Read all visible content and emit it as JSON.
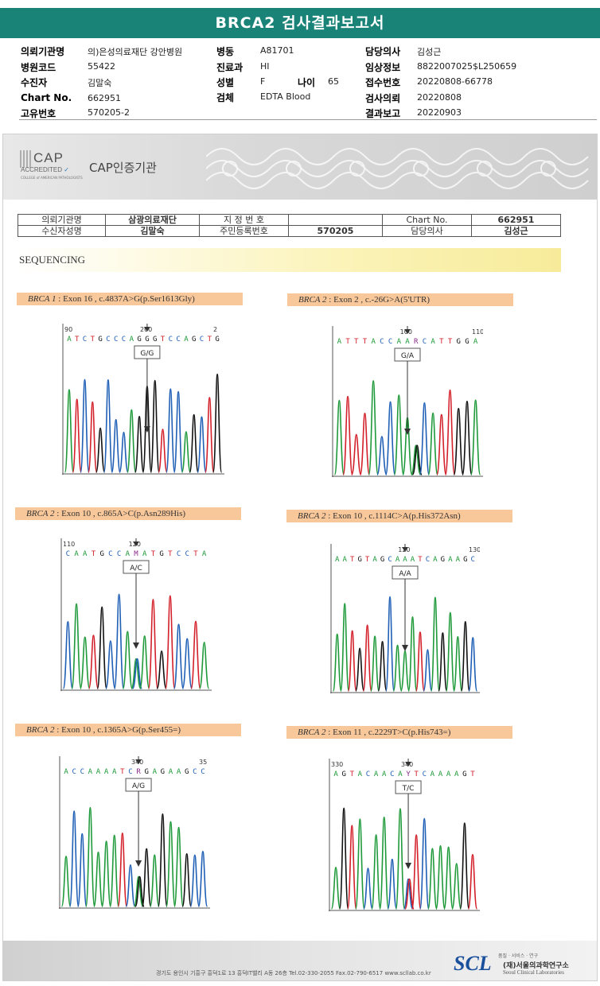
{
  "title": "BRCA2 검사결과보고서",
  "header": {
    "col1": [
      {
        "label": "의뢰기관명",
        "value": "의)은성의료재단 강안병원"
      },
      {
        "label": "병원코드",
        "value": "55422"
      },
      {
        "label": "수진자",
        "value": "김말숙"
      },
      {
        "label": "Chart No.",
        "value": "662951"
      },
      {
        "label": "고유번호",
        "value": "570205-2"
      }
    ],
    "col2": [
      {
        "label": "병동",
        "value": "A81701"
      },
      {
        "label": "진료과",
        "value": "HI"
      },
      {
        "label": "성별",
        "value": "F"
      },
      {
        "label": "검체",
        "value": "EDTA Blood"
      }
    ],
    "age": {
      "label": "나이",
      "value": "65"
    },
    "col3": [
      {
        "label": "담당의사",
        "value": "김성근"
      },
      {
        "label": "임상정보",
        "value": "8822007025$L250659"
      },
      {
        "label": "접수번호",
        "value": "20220808-66778"
      },
      {
        "label": "검사의뢰",
        "value": "20220808"
      },
      {
        "label": "결과보고",
        "value": "20220903"
      }
    ]
  },
  "cap": {
    "logo_big": "CAP",
    "logo_accredited": "ACCREDITED",
    "logo_small": "COLLEGE of AMERICAN PATHOLOGISTS",
    "text": "CAP인증기관"
  },
  "info_table": {
    "r1": [
      "의뢰기관명",
      "삼광의료재단",
      "지 정 번 호",
      "",
      "Chart No.",
      "662951"
    ],
    "r2": [
      "수신자성명",
      "김말숙",
      "주민등록번호",
      "570205",
      "담당의사",
      "김성근"
    ]
  },
  "sequencing_label": "SEQUENCING",
  "panels": [
    {
      "gene": "BRCA 1",
      "desc": " : Exon 16 , c.4837A>G(p.Ser1613Gly)",
      "pos_left": "90",
      "pos_mid": "200",
      "pos_right": "2",
      "bases": "ATCTGCCCAGGGTCCAGCTG",
      "genotype": "G/G"
    },
    {
      "gene": "BRCA 2",
      "desc": " : Exon 2 , c.-26G>A(5'UTR)",
      "pos_left": "",
      "pos_mid": "100",
      "pos_right": "110",
      "bases": "ATTTACCAARCATTGGA",
      "genotype": "G/A"
    },
    {
      "gene": "BRCA 2",
      "desc": " : Exon 10 , c.865A>C(p.Asn289His)",
      "pos_left": "110",
      "pos_mid": "120",
      "pos_right": "",
      "bases": "CAATGCCAMATGTCCTA",
      "genotype": "A/C"
    },
    {
      "gene": "BRCA 2",
      "desc": " : Exon 10 , c.1114C>A(p.His372Asn)",
      "pos_left": "",
      "pos_mid": "120",
      "pos_right": "130",
      "bases": "AATGTAGCAAATCAGAAGC",
      "genotype": "A/A"
    },
    {
      "gene": "BRCA 2",
      "desc": " : Exon 10 , c.1365A>G(p.Ser455=)",
      "pos_left": "",
      "pos_mid": "340",
      "pos_right": "35",
      "bases": "ACCAAAATCRGAGAAGCC",
      "genotype": "A/G"
    },
    {
      "gene": "BRCA 2",
      "desc": " : Exon 11 , c.2229T>C(p.His743=)",
      "pos_left": "330",
      "pos_mid": "340",
      "pos_right": "",
      "bases": "AGTACAACAYTCAAAAGT",
      "genotype": "T/C"
    }
  ],
  "colors": {
    "A": "#1f9a3a",
    "C": "#1f5fb5",
    "G": "#111111",
    "T": "#d3202a",
    "N": "#8a2a8a"
  },
  "footer": {
    "address": "경기도 용인시 기흥구 흥덕1로 13 흥덕IT밸리 A동 26층  Tel.02-330-2055  Fax.02-790-6517  www.scllab.co.kr",
    "scl": "SCL",
    "tagline": "품질 · 서비스 · 연구",
    "name": "(재)서울의과학연구소",
    "name_en": "Seoul Clinical Laboratories"
  }
}
